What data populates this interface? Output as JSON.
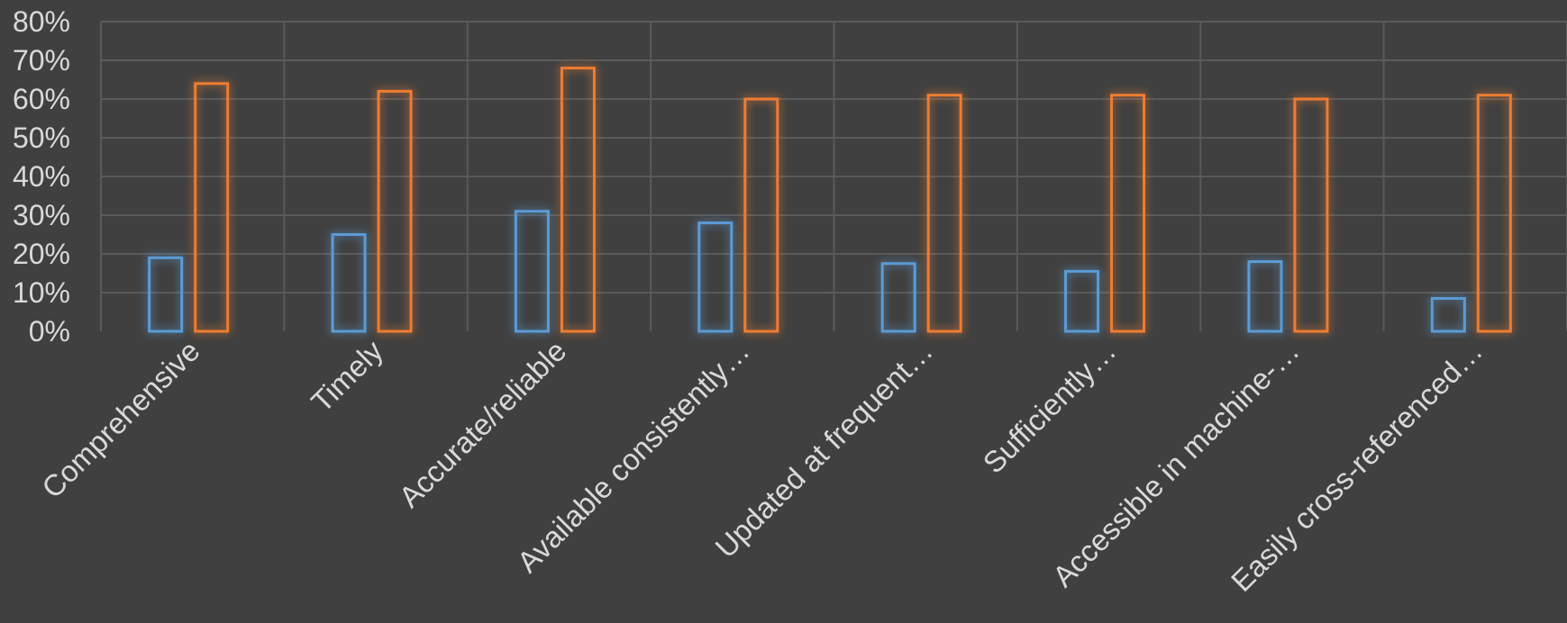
{
  "chart_data": {
    "type": "bar",
    "categories": [
      "Comprehensive",
      "Timely",
      "Accurate/reliable",
      "Available consistently…",
      "Updated at frequent…",
      "Sufficiently…",
      "Accessible in machine-…",
      "Easily cross-referenced…"
    ],
    "series": [
      {
        "color": "#5b9bd5",
        "values": [
          19,
          25,
          31,
          28,
          17.5,
          15.5,
          18,
          8.5
        ]
      },
      {
        "color": "#ed7d31",
        "values": [
          64,
          62,
          68,
          60,
          61,
          61,
          60,
          61
        ]
      }
    ],
    "ylim": [
      0,
      80
    ],
    "yticks": [
      "0%",
      "10%",
      "20%",
      "30%",
      "40%",
      "50%",
      "60%",
      "70%",
      "80%"
    ],
    "grid": true,
    "legend": "none",
    "colors": {
      "background": "#404040",
      "gridline": "#5a5a5a",
      "text": "#d9d9d9"
    }
  }
}
